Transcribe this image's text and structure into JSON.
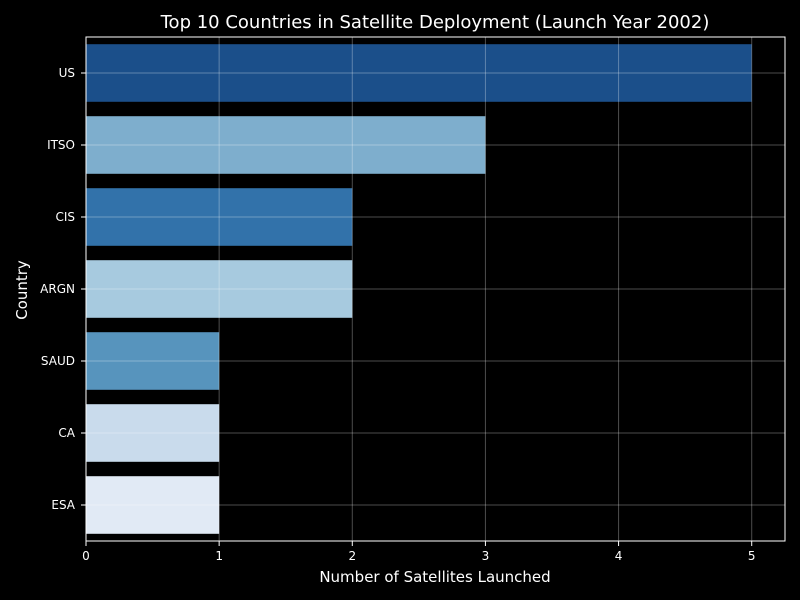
{
  "chart_data": {
    "type": "bar",
    "orientation": "horizontal",
    "title": "Top 10 Countries in Satellite Deployment (Launch Year 2002)",
    "xlabel": "Number of Satellites Launched",
    "ylabel": "Country",
    "categories": [
      "US",
      "ITSO",
      "CIS",
      "ARGN",
      "SAUD",
      "CA",
      "ESA"
    ],
    "values": [
      5,
      3,
      2,
      2,
      1,
      1,
      1
    ],
    "colors": [
      "#1b4f8a",
      "#7eaecd",
      "#3272aa",
      "#a7cadf",
      "#5794bd",
      "#c9dbec",
      "#e1eaf5"
    ],
    "xlim": [
      0,
      5.25
    ],
    "xticks": [
      0,
      1,
      2,
      3,
      4,
      5
    ],
    "grid": true,
    "background": "#000000"
  }
}
